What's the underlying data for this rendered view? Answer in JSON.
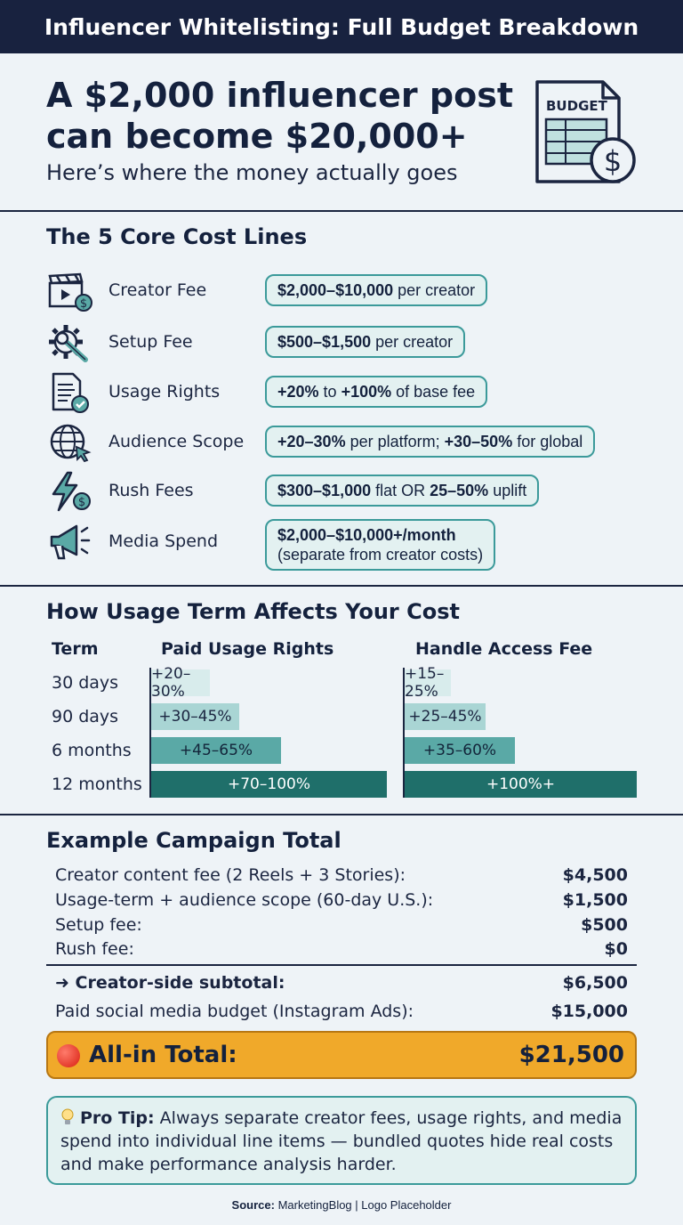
{
  "header": {
    "title": "Influencer Whitelisting: Full Budget Breakdown"
  },
  "hero": {
    "title": "A $2,000 influencer post can become $20,000+",
    "subtitle": "Here’s where the money actually goes",
    "icon_label": "BUDGET",
    "icon": "budget-document-dollar-icon"
  },
  "core_costs": {
    "title": "The 5 Core Cost Lines",
    "items": [
      {
        "label": "Creator Fee",
        "icon": "clapperboard-dollar-icon",
        "parts": [
          {
            "text": "$2,000–$10,000",
            "bold": true
          },
          {
            "text": " per creator",
            "bold": false
          }
        ]
      },
      {
        "label": "Setup Fee",
        "icon": "gear-wrench-icon",
        "parts": [
          {
            "text": "$500–$1,500",
            "bold": true
          },
          {
            "text": " per creator",
            "bold": false
          }
        ]
      },
      {
        "label": "Usage Rights",
        "icon": "document-check-icon",
        "parts": [
          {
            "text": "+20%",
            "bold": true
          },
          {
            "text": " to ",
            "bold": false
          },
          {
            "text": "+100%",
            "bold": true
          },
          {
            "text": " of base fee",
            "bold": false
          }
        ]
      },
      {
        "label": "Audience Scope",
        "icon": "globe-cursor-icon",
        "parts": [
          {
            "text": "+20–30%",
            "bold": true
          },
          {
            "text": " per platform; ",
            "bold": false
          },
          {
            "text": "+30–50%",
            "bold": true
          },
          {
            "text": " for global",
            "bold": false
          }
        ]
      },
      {
        "label": "Rush Fees",
        "icon": "lightning-dollar-icon",
        "parts": [
          {
            "text": "$300–$1,000",
            "bold": true
          },
          {
            "text": " flat OR ",
            "bold": false
          },
          {
            "text": "25–50%",
            "bold": true
          },
          {
            "text": " uplift",
            "bold": false
          }
        ]
      },
      {
        "label": "Media Spend",
        "icon": "megaphone-icon",
        "parts": [
          {
            "text": "$2,000–$10,000+/month",
            "bold": true
          }
        ],
        "line2": "(separate from creator costs)"
      }
    ]
  },
  "usage_term": {
    "title": "How Usage Term Affects Your Cost",
    "col_term": "Term",
    "col_paid": "Paid Usage Rights",
    "col_handle": "Handle Access Fee",
    "rows": [
      {
        "term": "30 days",
        "paid": "+20–30%",
        "handle": "+15–25%",
        "paid_level": 0.25,
        "handle_level": 0.2
      },
      {
        "term": "90 days",
        "paid": "+30–45%",
        "handle": "+25–45%",
        "paid_level": 0.375,
        "handle_level": 0.35
      },
      {
        "term": "6 months",
        "paid": "+45–65%",
        "handle": "+35–60%",
        "paid_level": 0.55,
        "handle_level": 0.475
      },
      {
        "term": "12 months",
        "paid": "+70–100%",
        "handle": "+100%+",
        "paid_level": 1.0,
        "handle_level": 1.0
      }
    ]
  },
  "example": {
    "title": "Example Campaign Total",
    "lines": [
      {
        "label": "Creator content fee (2 Reels + 3 Stories):",
        "amount": "$4,500"
      },
      {
        "label": "Usage-term + audience scope (60-day U.S.):",
        "amount": "$1,500"
      },
      {
        "label": "Setup fee:",
        "amount": "$500"
      },
      {
        "label": "Rush fee:",
        "amount": "$0"
      }
    ],
    "subtotal_label": "➜ Creator-side subtotal:",
    "subtotal_amount": "$6,500",
    "media_label": "Paid social media budget (Instagram Ads):",
    "media_amount": "$15,000",
    "total_label": "All-in Total:",
    "total_amount": "$21,500",
    "colors": {
      "total_bg": "#f0a92a",
      "accent_teal": "#3b9a9a",
      "dark": "#18223f"
    }
  },
  "tip": {
    "lead": "Pro Tip:",
    "text": " Always separate creator fees, usage rights, and media spend into individual line items — bundled quotes hide real costs and make performance analysis harder.",
    "icon": "lightbulb-icon"
  },
  "footer": {
    "source_label": "Source:",
    "source_text": " MarketingBlog | Logo Placeholder"
  }
}
